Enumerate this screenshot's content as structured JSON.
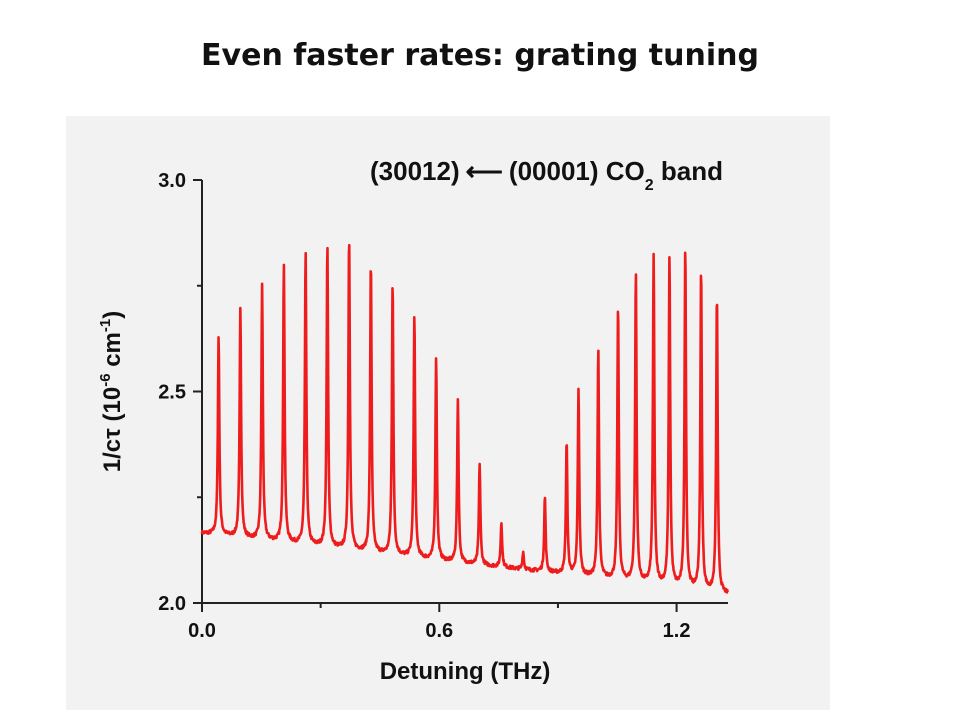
{
  "slide": {
    "title": "Even faster rates: grating tuning"
  },
  "chart_data": {
    "type": "line",
    "xlabel": "Detuning (THz)",
    "ylabel_parts": {
      "prefix": "1/c",
      "tau": "τ",
      "open": " (10",
      "exp": "-6",
      "unit": " cm",
      "unit_exp": "-1",
      "close": ")"
    },
    "xlim": [
      0.0,
      1.33
    ],
    "ylim": [
      2.0,
      3.0
    ],
    "xticks": [
      0.0,
      0.6,
      1.2
    ],
    "xtick_labels": [
      "0.0",
      "0.6",
      "1.2"
    ],
    "yticks": [
      2.0,
      2.5,
      3.0
    ],
    "ytick_labels": [
      "2.0",
      "2.5",
      "3.0"
    ],
    "annotation": {
      "upper": "(30012)",
      "arrow": "⟵",
      "lower": "(00001) CO",
      "subscript": "2",
      "suffix": " band"
    },
    "series_color": "#ee1c1c",
    "baseline": {
      "x": [
        0.0,
        0.6,
        1.0,
        1.33
      ],
      "y": [
        2.165,
        2.1,
        2.06,
        2.02
      ]
    },
    "peaks": {
      "x": [
        0.042,
        0.097,
        0.152,
        0.207,
        0.262,
        0.317,
        0.372,
        0.427,
        0.482,
        0.537,
        0.592,
        0.647,
        0.702,
        0.757,
        0.812,
        0.867,
        0.922,
        0.952,
        1.002,
        1.052,
        1.097,
        1.142,
        1.182,
        1.222,
        1.262,
        1.302
      ],
      "y": [
        2.63,
        2.7,
        2.75,
        2.8,
        2.83,
        2.85,
        2.87,
        2.81,
        2.76,
        2.68,
        2.58,
        2.48,
        2.33,
        2.19,
        2.12,
        2.25,
        2.38,
        2.5,
        2.6,
        2.7,
        2.78,
        2.82,
        2.82,
        2.84,
        2.79,
        2.73
      ]
    }
  }
}
